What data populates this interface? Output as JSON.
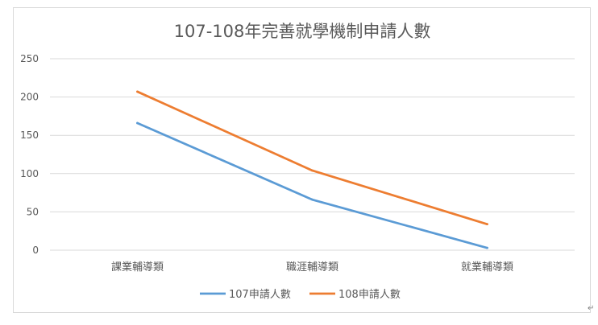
{
  "chart_data": {
    "type": "line",
    "title": "107-108年完善就學機制申請人數",
    "xlabel": "",
    "ylabel": "",
    "categories": [
      "課業輔導類",
      "職涯輔導類",
      "就業輔導類"
    ],
    "series": [
      {
        "name": "107申請人數",
        "values": [
          166,
          66,
          3
        ],
        "color": "#5b9bd5"
      },
      {
        "name": "108申請人數",
        "values": [
          207,
          104,
          34
        ],
        "color": "#ed7d31"
      }
    ],
    "ylim": [
      0,
      250
    ],
    "yticks": [
      "0",
      "50",
      "100",
      "150",
      "200",
      "250"
    ],
    "grid": true,
    "legend_position": "bottom"
  }
}
